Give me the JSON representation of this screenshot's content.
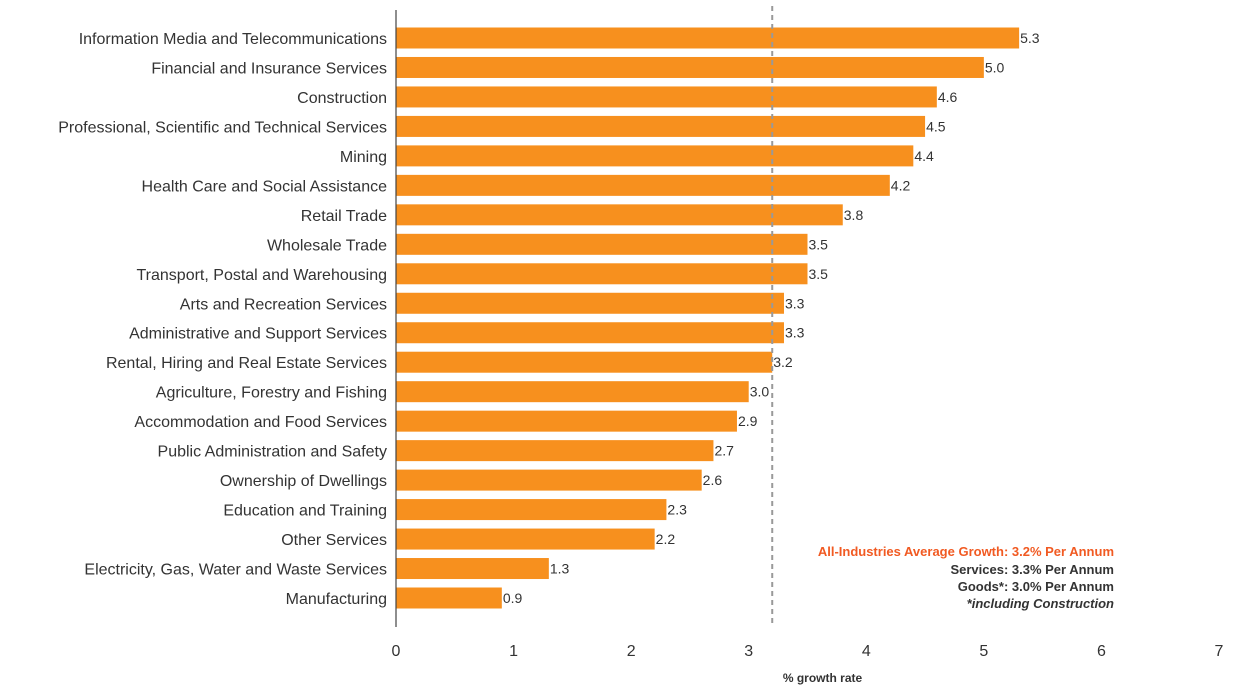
{
  "chart_data": {
    "type": "bar",
    "orientation": "horizontal",
    "categories": [
      "Information Media and Telecommunications",
      "Financial and Insurance Services",
      "Construction",
      "Professional, Scientific and Technical Services",
      "Mining",
      "Health Care and Social Assistance",
      "Retail Trade",
      "Wholesale Trade",
      "Transport, Postal and Warehousing",
      "Arts and Recreation Services",
      "Administrative and Support Services",
      "Rental, Hiring and Real Estate Services",
      "Agriculture, Forestry and Fishing",
      "Accommodation and Food Services",
      "Public Administration and Safety",
      "Ownership of Dwellings",
      "Education and Training",
      "Other Services",
      "Electricity, Gas, Water and Waste Services",
      "Manufacturing"
    ],
    "values": [
      5.3,
      5.0,
      4.6,
      4.5,
      4.4,
      4.2,
      3.8,
      3.5,
      3.5,
      3.3,
      3.3,
      3.2,
      3.0,
      2.9,
      2.7,
      2.6,
      2.3,
      2.2,
      1.3,
      0.9
    ],
    "value_labels": [
      "5.3",
      "5.0",
      "4.6",
      "4.5",
      "4.4",
      "4.2",
      "3.8",
      "3.5",
      "3.5",
      "3.3",
      "3.3",
      "3.2",
      "3.0",
      "2.9",
      "2.7",
      "2.6",
      "2.3",
      "2.2",
      "1.3",
      "0.9"
    ],
    "xlabel": "% growth rate",
    "ylabel": "",
    "title": "",
    "xlim": [
      0,
      7
    ],
    "x_ticks": [
      0,
      1,
      2,
      3,
      4,
      5,
      6,
      7
    ],
    "x_tick_labels": [
      "0",
      "1",
      "2",
      "3",
      "4",
      "5",
      "6",
      "7"
    ],
    "reference_line": {
      "value": 3.2,
      "style": "dashed"
    },
    "annotations": [
      "All-Industries Average Growth: 3.2% Per Annum",
      "Services: 3.3% Per Annum",
      "Goods*: 3.0% Per Annum",
      "*including Construction"
    ],
    "grid": false,
    "legend": "none"
  },
  "colors": {
    "bar": "#F7901E",
    "average_note": "#F15A22",
    "text": "#333333",
    "reference_line": "#999999",
    "axis": "#444444"
  }
}
